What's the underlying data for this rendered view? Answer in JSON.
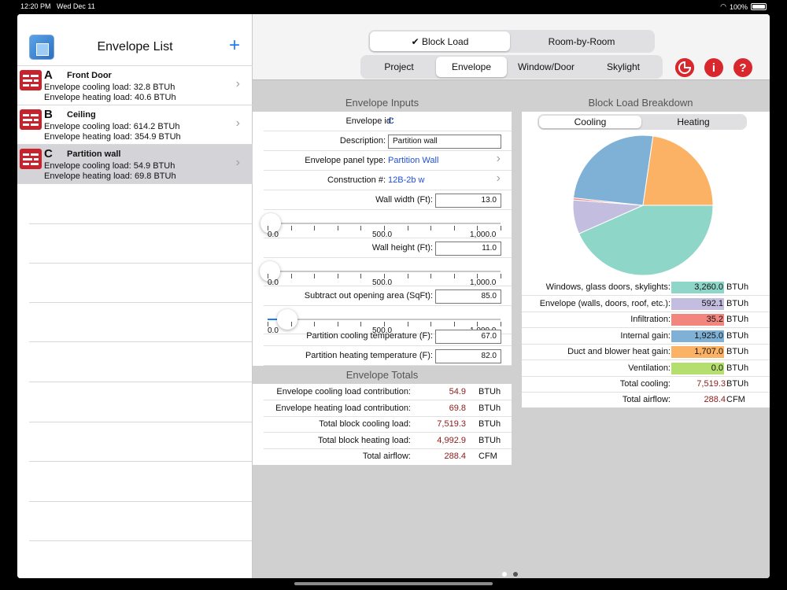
{
  "status": {
    "time": "12:20 PM",
    "date": "Wed Dec 11",
    "battery": "100%"
  },
  "sidebar": {
    "title": "Envelope List",
    "add_label": "+",
    "items": [
      {
        "letter": "A",
        "name": "Front Door",
        "cooling": "Envelope cooling load: 32.8 BTUh",
        "heating": "Envelope heating load: 40.6 BTUh"
      },
      {
        "letter": "B",
        "name": "Ceiling",
        "cooling": "Envelope cooling load: 614.2 BTUh",
        "heating": "Envelope heating load: 354.9 BTUh"
      },
      {
        "letter": "C",
        "name": "Partition wall",
        "cooling": "Envelope cooling load: 54.9 BTUh",
        "heating": "Envelope heating load: 69.8 BTUh"
      }
    ]
  },
  "topbar": {
    "mode_tabs": [
      {
        "label": "✔ Block Load",
        "selected": true
      },
      {
        "label": "Room-by-Room",
        "selected": false
      }
    ],
    "nav_tabs": [
      {
        "label": "Project",
        "selected": false
      },
      {
        "label": "Envelope",
        "selected": true
      },
      {
        "label": "Window/Door",
        "selected": false
      },
      {
        "label": "Skylight",
        "selected": false
      }
    ],
    "info_label": "i",
    "help_label": "?"
  },
  "inputs": {
    "title": "Envelope Inputs",
    "envelope_id_label": "Envelope id:",
    "envelope_id": "C",
    "description_label": "Description:",
    "description": "Partition wall",
    "panel_type_label": "Envelope panel type:",
    "panel_type": "Partition Wall",
    "construction_label": "Construction #:",
    "construction": "12B-2b w",
    "wall_width_label": "Wall width (Ft):",
    "wall_width": "13.0",
    "wall_height_label": "Wall height (Ft):",
    "wall_height": "11.0",
    "opening_label": "Subtract out opening area (SqFt):",
    "opening": "85.0",
    "slider_min": "0.0",
    "slider_mid": "500.0",
    "slider_max": "1,000.0",
    "slider_levels": {
      "width": 13,
      "height": 11,
      "opening": 85
    },
    "cool_temp_label": "Partition cooling temperature (F):",
    "cool_temp": "67.0",
    "heat_temp_label": "Partition heating temperature (F):",
    "heat_temp": "82.0"
  },
  "totals": {
    "title": "Envelope Totals",
    "rows": [
      {
        "label": "Envelope cooling load contribution:",
        "value": "54.9",
        "unit": "BTUh"
      },
      {
        "label": "Envelope heating load contribution:",
        "value": "69.8",
        "unit": "BTUh"
      },
      {
        "label": "Total block cooling load:",
        "value": "7,519.3",
        "unit": "BTUh"
      },
      {
        "label": "Total block heating load:",
        "value": "4,992.9",
        "unit": "BTUh"
      },
      {
        "label": "Total airflow:",
        "value": "288.4",
        "unit": "CFM"
      }
    ]
  },
  "breakdown": {
    "title": "Block Load Breakdown",
    "tabs": [
      {
        "label": "Cooling",
        "selected": true
      },
      {
        "label": "Heating",
        "selected": false
      }
    ],
    "items": [
      {
        "label": "Windows, glass doors, skylights:",
        "value": "3,260.0",
        "unit": "BTUh",
        "color": "#8ed6c8"
      },
      {
        "label": "Envelope (walls, doors, roof, etc.):",
        "value": "592.1",
        "unit": "BTUh",
        "color": "#c3bedf"
      },
      {
        "label": "Infiltration:",
        "value": "35.2",
        "unit": "BTUh",
        "color": "#f2857d"
      },
      {
        "label": "Internal gain:",
        "value": "1,925.0",
        "unit": "BTUh",
        "color": "#7fb0d6"
      },
      {
        "label": "Duct and blower heat gain:",
        "value": "1,707.0",
        "unit": "BTUh",
        "color": "#fbb264"
      },
      {
        "label": "Ventilation:",
        "value": "0.0",
        "unit": "BTUh",
        "color": "#b4df6e"
      }
    ],
    "total_cooling_label": "Total cooling:",
    "total_cooling": "7,519.3",
    "total_cooling_unit": "BTUh",
    "total_airflow_label": "Total airflow:",
    "total_airflow": "288.4",
    "total_airflow_unit": "CFM"
  },
  "chart_data": {
    "type": "pie",
    "categories": [
      "Windows, glass doors, skylights",
      "Envelope (walls, doors, roof, etc.)",
      "Infiltration",
      "Internal gain",
      "Duct and blower heat gain",
      "Ventilation"
    ],
    "values": [
      3260.0,
      592.1,
      35.2,
      1925.0,
      1707.0,
      0.0
    ],
    "colors": [
      "#8ed6c8",
      "#c3bedf",
      "#f2857d",
      "#7fb0d6",
      "#fbb264",
      "#b4df6e"
    ]
  }
}
